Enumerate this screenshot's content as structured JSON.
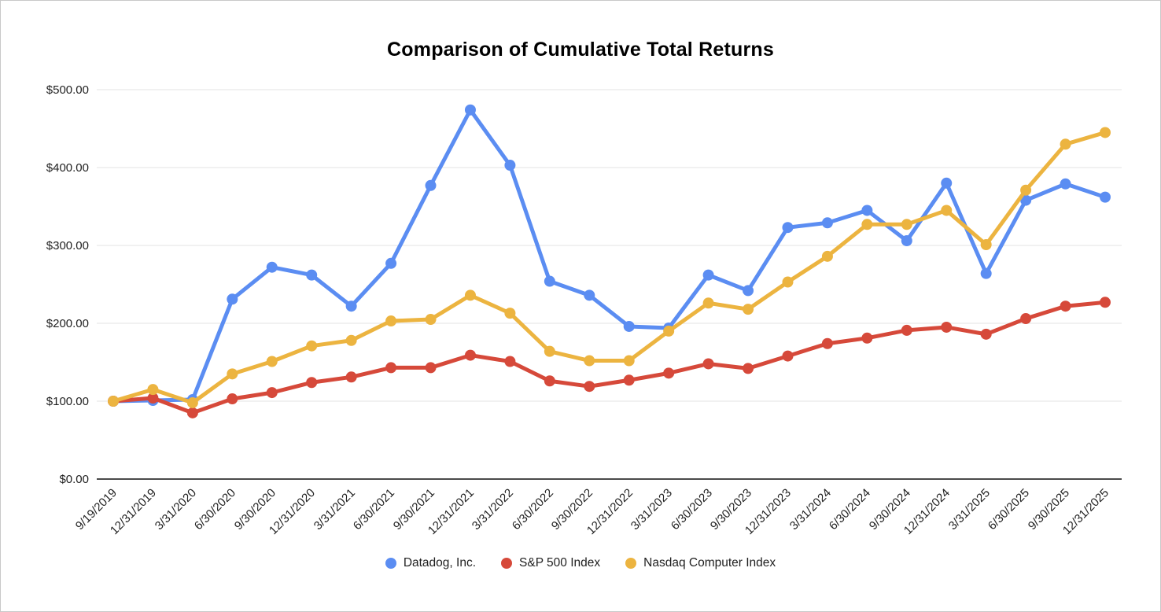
{
  "chart": {
    "title": "Comparison of Cumulative Total Returns"
  },
  "chart_data": {
    "type": "line",
    "title": "Comparison of Cumulative Total Returns",
    "categories": [
      "9/19/2019",
      "12/31/2019",
      "3/31/2020",
      "6/30/2020",
      "9/30/2020",
      "12/31/2020",
      "3/31/2021",
      "6/30/2021",
      "9/30/2021",
      "12/31/2021",
      "3/31/2022",
      "6/30/2022",
      "9/30/2022",
      "12/31/2022",
      "3/31/2023",
      "6/30/2023",
      "9/30/2023",
      "12/31/2023",
      "3/31/2024",
      "6/30/2024",
      "9/30/2024",
      "12/31/2024",
      "3/31/2025",
      "6/30/2025",
      "9/30/2025",
      "12/31/2025"
    ],
    "series": [
      {
        "name": "Datadog, Inc.",
        "color": "#5B8DF2",
        "values": [
          100,
          101,
          102,
          231,
          272,
          262,
          222,
          277,
          377,
          474,
          403,
          254,
          236,
          196,
          194,
          262,
          242,
          323,
          329,
          345,
          306,
          380,
          264,
          358,
          379,
          362
        ]
      },
      {
        "name": "S&P 500 Index",
        "color": "#D6493A",
        "values": [
          100,
          104,
          85,
          103,
          111,
          124,
          131,
          143,
          143,
          159,
          151,
          126,
          119,
          127,
          136,
          148,
          142,
          158,
          174,
          181,
          191,
          195,
          186,
          206,
          222,
          227
        ]
      },
      {
        "name": "Nasdaq Computer Index",
        "color": "#ECB440",
        "values": [
          100,
          115,
          98,
          135,
          151,
          171,
          178,
          203,
          205,
          236,
          213,
          164,
          152,
          152,
          190,
          226,
          218,
          253,
          286,
          327,
          327,
          345,
          301,
          371,
          430,
          445
        ]
      }
    ],
    "xlabel": "",
    "ylabel": "",
    "ylim": [
      0,
      500
    ],
    "ytick_values": [
      0,
      100,
      200,
      300,
      400,
      500
    ],
    "ytick_labels": [
      "$0.00",
      "$100.00",
      "$200.00",
      "$300.00",
      "$400.00",
      "$500.00"
    ],
    "grid": "horizontal",
    "legend_position": "bottom",
    "draw_order": [
      0,
      1,
      2
    ]
  }
}
